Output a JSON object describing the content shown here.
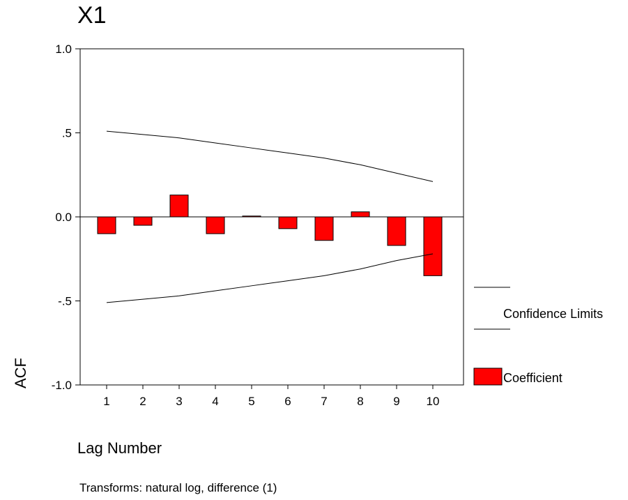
{
  "chart_data": {
    "type": "bar",
    "title": "X1",
    "xlabel": "Lag Number",
    "ylabel": "ACF",
    "ylim": [
      -1.0,
      1.0
    ],
    "yticks": [
      {
        "value": 1.0,
        "label": "1.0"
      },
      {
        "value": 0.5,
        "label": ".5"
      },
      {
        "value": 0.0,
        "label": "0.0"
      },
      {
        "value": -0.5,
        "label": "-.5"
      },
      {
        "value": -1.0,
        "label": "-1.0"
      }
    ],
    "categories": [
      "1",
      "2",
      "3",
      "4",
      "5",
      "6",
      "7",
      "8",
      "9",
      "10"
    ],
    "series": [
      {
        "name": "Coefficient",
        "color": "#ff0000",
        "values": [
          -0.1,
          -0.05,
          0.13,
          -0.1,
          0.005,
          -0.07,
          -0.14,
          0.03,
          -0.17,
          -0.35
        ]
      }
    ],
    "confidence_limits": {
      "name": "Confidence Limits",
      "upper": [
        0.51,
        0.49,
        0.47,
        0.44,
        0.41,
        0.38,
        0.35,
        0.31,
        0.26,
        0.21
      ],
      "lower": [
        -0.51,
        -0.49,
        -0.47,
        -0.44,
        -0.41,
        -0.38,
        -0.35,
        -0.31,
        -0.26,
        -0.22
      ]
    },
    "legend": {
      "position": "right",
      "confidence_label": "Confidence Limits",
      "coefficient_label": "Coefficient"
    },
    "grid": false,
    "footnote": "Transforms: natural log, difference (1)"
  }
}
